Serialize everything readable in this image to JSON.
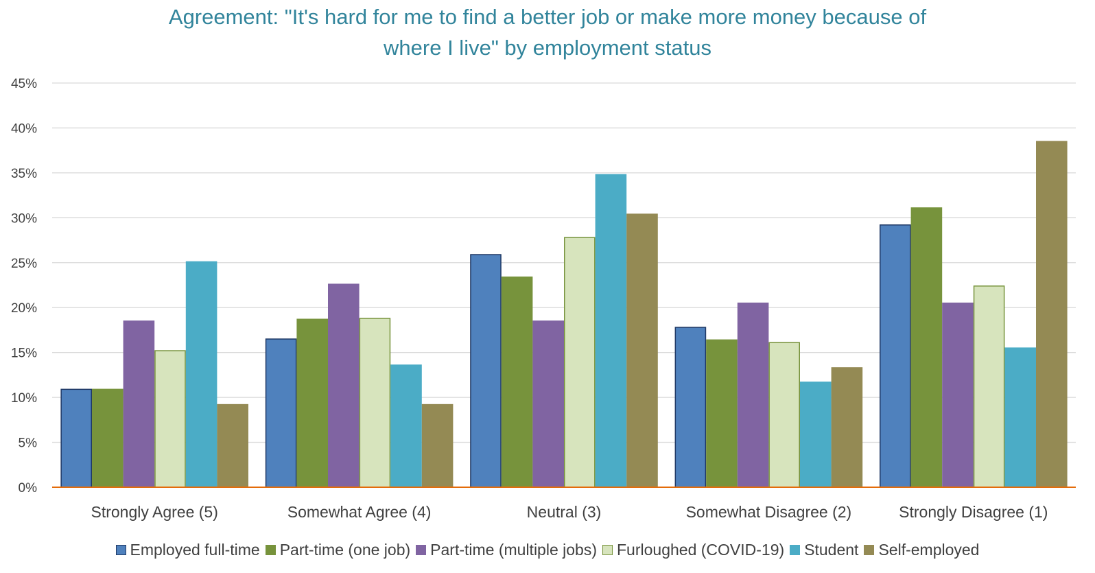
{
  "title_lines": [
    "Agreement:  \"It's hard for me to find a better job or make more money because of",
    "where I live\" by employment status"
  ],
  "chart_data": {
    "type": "bar",
    "title": "Agreement:  \"It's hard for me to find a better job or make more money because of where I live\" by employment status",
    "categories": [
      "Strongly Agree (5)",
      "Somewhat Agree (4)",
      "Neutral (3)",
      "Somewhat Disagree (2)",
      "Strongly Disagree (1)"
    ],
    "ylim": [
      0,
      45
    ],
    "yticks": [
      "0%",
      "5%",
      "10%",
      "15%",
      "20%",
      "25%",
      "30%",
      "35%",
      "40%",
      "45%"
    ],
    "grid": true,
    "legend_position": "bottom",
    "series": [
      {
        "name": "Employed full-time",
        "color": "#4f81bd",
        "border": "#1f3864",
        "values": [
          10.9,
          16.5,
          25.9,
          17.8,
          29.2
        ]
      },
      {
        "name": "Part-time (one job)",
        "color": "#77933c",
        "border": "#77933c",
        "values": [
          10.9,
          18.7,
          23.4,
          16.4,
          31.1
        ]
      },
      {
        "name": "Part-time (multiple jobs)",
        "color": "#8064a2",
        "border": "#8064a2",
        "values": [
          18.5,
          22.6,
          18.5,
          20.5,
          20.5
        ]
      },
      {
        "name": "Furloughed (COVID-19)",
        "color": "#d7e4bd",
        "border": "#77933c",
        "values": [
          15.2,
          18.8,
          27.8,
          16.1,
          22.4
        ]
      },
      {
        "name": "Student",
        "color": "#4bacc6",
        "border": "#4bacc6",
        "values": [
          25.1,
          13.6,
          34.8,
          11.7,
          15.5
        ]
      },
      {
        "name": "Self-employed",
        "color": "#948a54",
        "border": "#948a54",
        "values": [
          9.2,
          9.2,
          30.4,
          13.3,
          38.5
        ]
      }
    ]
  }
}
